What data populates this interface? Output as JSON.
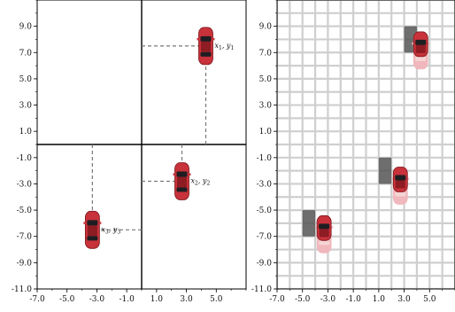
{
  "chart_data": [
    {
      "type": "scatter",
      "title": "",
      "xlabel": "",
      "ylabel": "",
      "xlim": [
        -7,
        7
      ],
      "ylim": [
        -11,
        11
      ],
      "grid": false,
      "x_ticks": [
        "-7.0",
        "-5.0",
        "-3.0",
        "-1.0",
        "1.0",
        "3.0",
        "5.0"
      ],
      "y_ticks": [
        "9.0",
        "7.0",
        "5.0",
        "3.0",
        "1.0",
        "-1.0",
        "-3.0",
        "-5.0",
        "-7.0",
        "-9.0",
        "-11.0"
      ],
      "axis_lines": {
        "x": 0,
        "y": 0
      },
      "series": [
        {
          "points": [
            {
              "x": 4.3,
              "y": 7.5,
              "label": "x_1, y_1",
              "label_main": "x",
              "label_sub1": "1",
              "label_sep": ", y",
              "label_sub2": "1"
            },
            {
              "x": 2.7,
              "y": -2.8,
              "label": "x_2, y_2",
              "label_main": "x",
              "label_sub1": "2",
              "label_sep": ", y",
              "label_sub2": "2"
            },
            {
              "x": -3.3,
              "y": -6.5,
              "label": "x_3, y_3",
              "label_main": "x",
              "label_sub1": "3",
              "label_sep": ", y",
              "label_sub2": "3"
            }
          ]
        }
      ]
    },
    {
      "type": "scatter",
      "title": "",
      "xlabel": "",
      "ylabel": "",
      "xlim": [
        -7,
        7
      ],
      "ylim": [
        -11,
        11
      ],
      "grid": true,
      "grid_step": 1,
      "x_ticks": [
        "-7.0",
        "-5.0",
        "-3.0",
        "-1.0",
        "1.0",
        "3.0",
        "5.0"
      ],
      "y_ticks": [
        "9.0",
        "7.0",
        "5.0",
        "3.0",
        "1.0",
        "-1.0",
        "-3.0",
        "-5.0",
        "-7.0",
        "-9.0",
        "-11.0"
      ],
      "cells": [
        {
          "x0": 3,
          "y0": 7,
          "x1": 4,
          "y1": 9
        },
        {
          "x0": 1,
          "y0": -3,
          "x1": 2,
          "y1": -1
        },
        {
          "x0": -5,
          "y0": -7,
          "x1": -4,
          "y1": -5
        }
      ],
      "cars": [
        {
          "x": 4.3,
          "y": 7.5
        },
        {
          "x": 2.7,
          "y": -2.8
        },
        {
          "x": -3.3,
          "y": -6.5
        }
      ]
    }
  ],
  "colors": {
    "car_body": "#c8323a",
    "car_dark": "#7a161c",
    "car_window": "#1e1e22",
    "car_faded": "#f0b8bc",
    "cell_fill": "#555555",
    "grid_line": "#cfcfcf",
    "axis_line": "#000000",
    "dash_line": "#777777"
  }
}
